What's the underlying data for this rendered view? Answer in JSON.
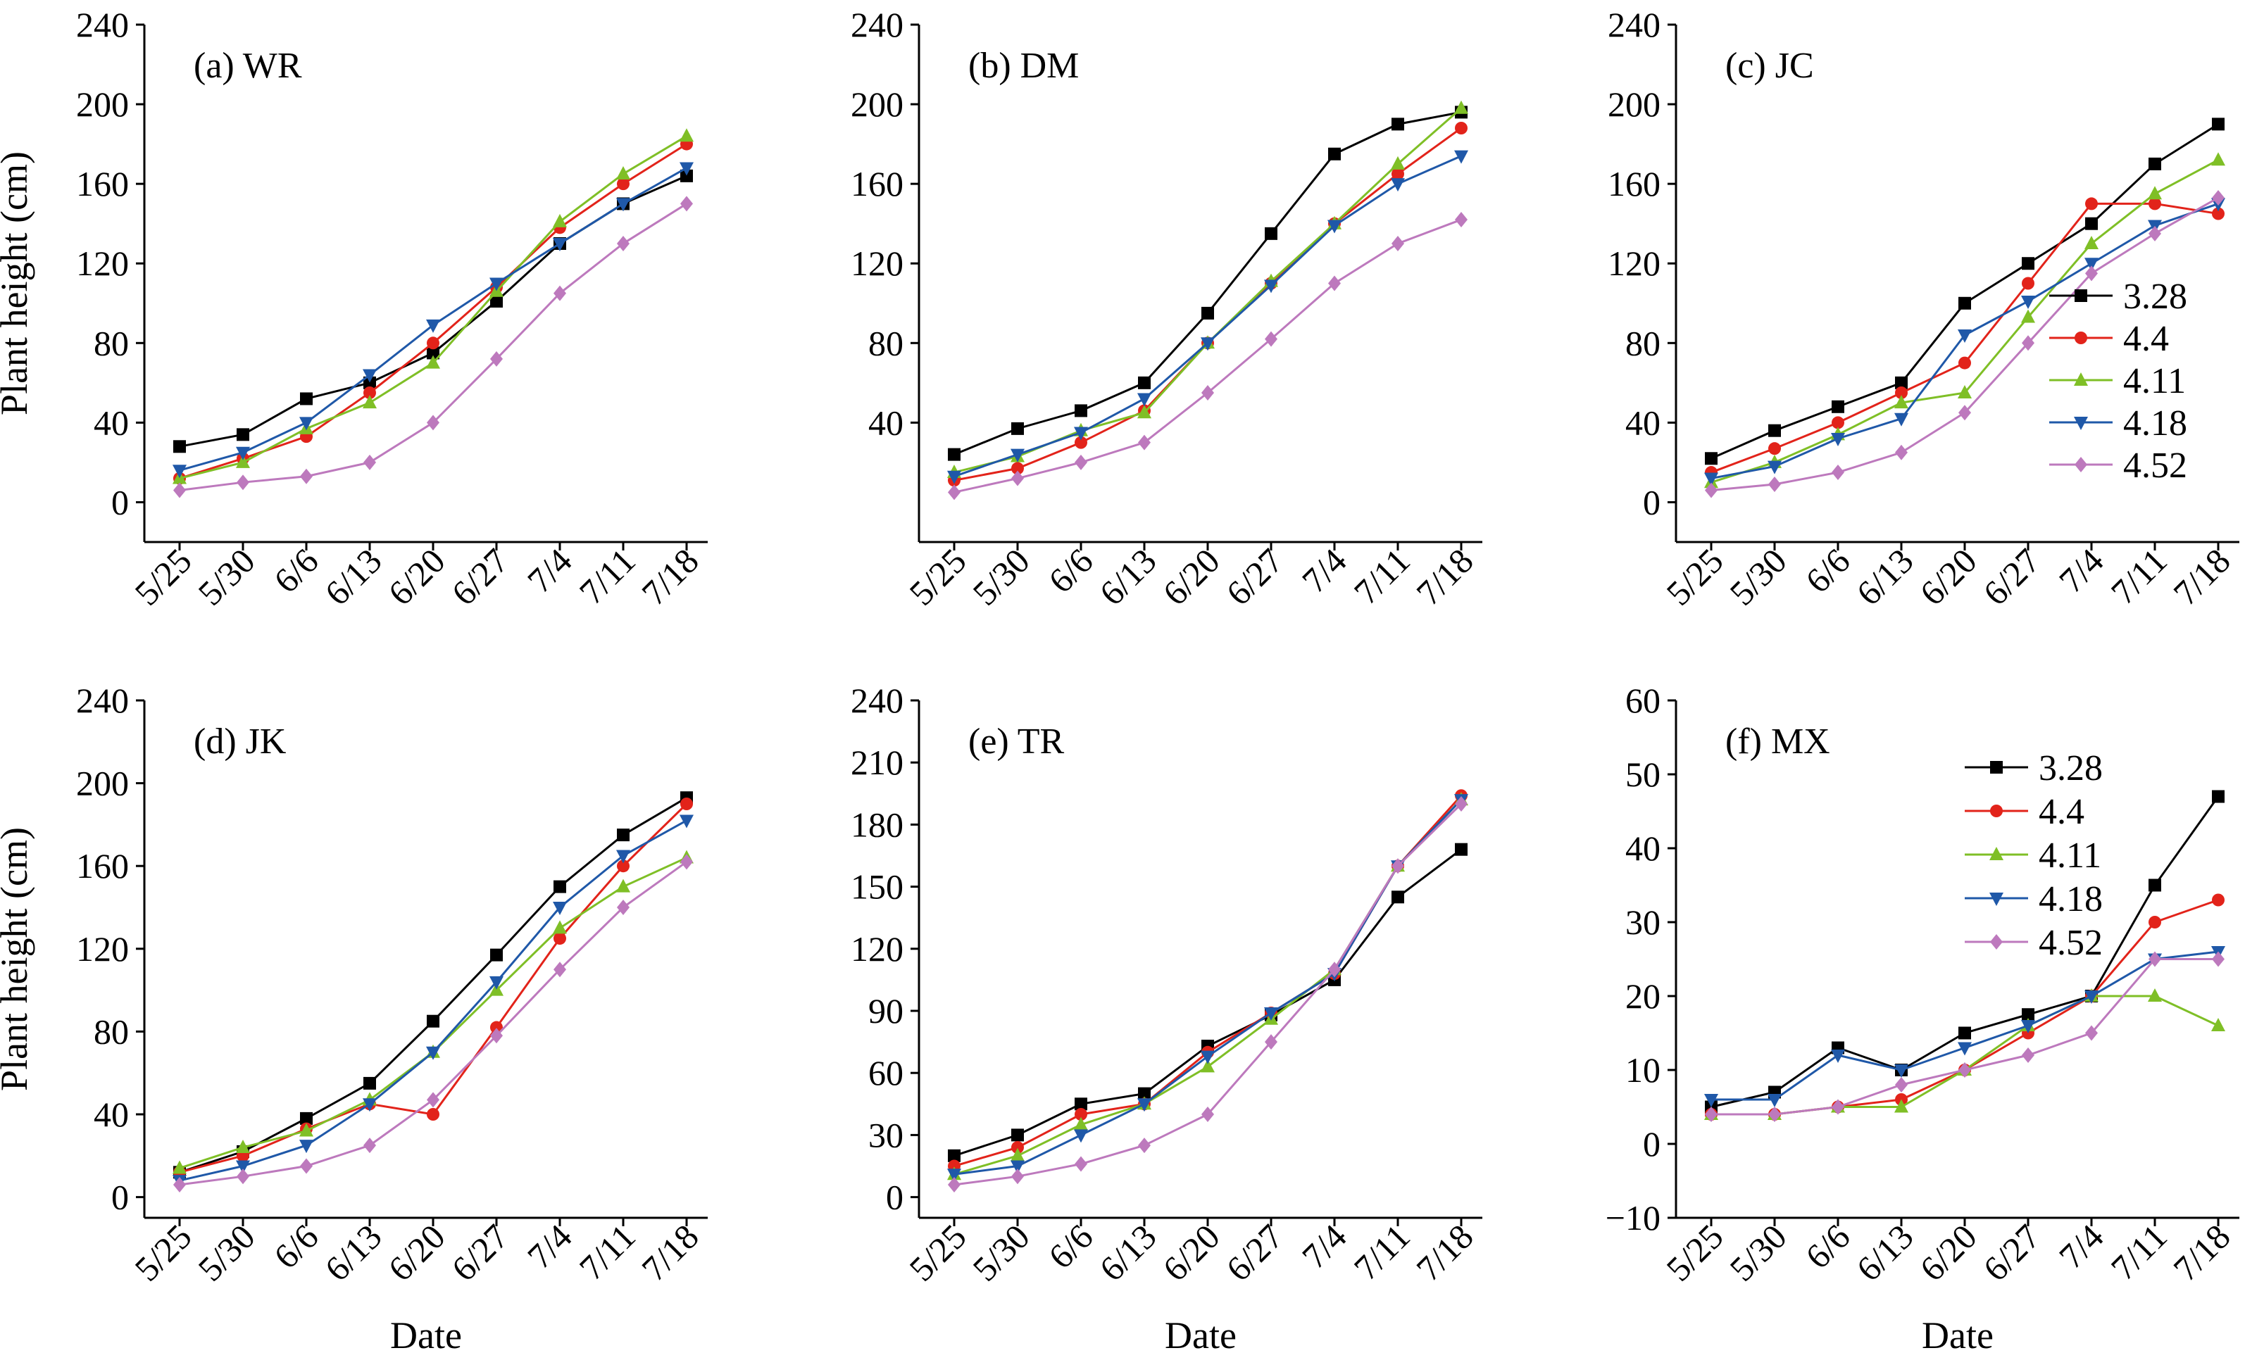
{
  "chart_data": [
    {
      "type": "line",
      "title": "(a) WR",
      "xlabel": "",
      "ylabel": "Plant height (cm)",
      "categories": [
        "5/25",
        "5/30",
        "6/6",
        "6/13",
        "6/20",
        "6/27",
        "7/4",
        "7/11",
        "7/18"
      ],
      "ylim": [
        -20,
        240
      ],
      "yticks": [
        0,
        40,
        80,
        120,
        160,
        200,
        240
      ],
      "legend": false,
      "series": [
        {
          "name": "3.28",
          "values": [
            28,
            34,
            52,
            60,
            75,
            101,
            130,
            150,
            164
          ]
        },
        {
          "name": "4.4",
          "values": [
            12,
            22,
            33,
            55,
            80,
            108,
            138,
            160,
            180
          ]
        },
        {
          "name": "4.11",
          "values": [
            12,
            20,
            37,
            50,
            70,
            106,
            141,
            165,
            184
          ]
        },
        {
          "name": "4.18",
          "values": [
            16,
            25,
            40,
            64,
            89,
            110,
            130,
            150,
            168
          ]
        },
        {
          "name": "4.52",
          "values": [
            6,
            10,
            13,
            20,
            40,
            72,
            105,
            130,
            150
          ]
        }
      ]
    },
    {
      "type": "line",
      "title": "(b) DM",
      "xlabel": "",
      "ylabel": "",
      "categories": [
        "5/25",
        "5/30",
        "6/6",
        "6/13",
        "6/20",
        "6/27",
        "7/4",
        "7/11",
        "7/18"
      ],
      "ylim": [
        -20,
        240
      ],
      "yticks": [
        40,
        80,
        120,
        160,
        200,
        240
      ],
      "legend": false,
      "series": [
        {
          "name": "3.28",
          "values": [
            24,
            37,
            46,
            60,
            95,
            135,
            175,
            190,
            196
          ]
        },
        {
          "name": "4.4",
          "values": [
            11,
            17,
            30,
            46,
            80,
            110,
            140,
            165,
            188
          ]
        },
        {
          "name": "4.11",
          "values": [
            15,
            23,
            36,
            45,
            80,
            111,
            140,
            170,
            198
          ]
        },
        {
          "name": "4.18",
          "values": [
            13,
            24,
            35,
            52,
            80,
            109,
            139,
            160,
            174
          ]
        },
        {
          "name": "4.52",
          "values": [
            5,
            12,
            20,
            30,
            55,
            82,
            110,
            130,
            142
          ]
        }
      ]
    },
    {
      "type": "line",
      "title": "(c) JC",
      "xlabel": "",
      "ylabel": "",
      "categories": [
        "5/25",
        "5/30",
        "6/6",
        "6/13",
        "6/20",
        "6/27",
        "7/4",
        "7/11",
        "7/18"
      ],
      "ylim": [
        -20,
        240
      ],
      "yticks": [
        0,
        40,
        80,
        120,
        160,
        200,
        240
      ],
      "legend": "right",
      "series": [
        {
          "name": "3.28",
          "values": [
            22,
            36,
            48,
            60,
            100,
            120,
            140,
            170,
            190
          ]
        },
        {
          "name": "4.4",
          "values": [
            15,
            27,
            40,
            55,
            70,
            110,
            150,
            150,
            145
          ]
        },
        {
          "name": "4.11",
          "values": [
            10,
            20,
            34,
            50,
            55,
            93,
            130,
            155,
            172
          ]
        },
        {
          "name": "4.18",
          "values": [
            12,
            18,
            32,
            42,
            84,
            101,
            120,
            139,
            150
          ]
        },
        {
          "name": "4.52",
          "values": [
            6,
            9,
            15,
            25,
            45,
            80,
            115,
            135,
            153
          ]
        }
      ]
    },
    {
      "type": "line",
      "title": "(d) JK",
      "xlabel": "Date",
      "ylabel": "Plant height (cm)",
      "categories": [
        "5/25",
        "5/30",
        "6/6",
        "6/13",
        "6/20",
        "6/27",
        "7/4",
        "7/11",
        "7/18"
      ],
      "ylim": [
        -10,
        240
      ],
      "yticks": [
        0,
        40,
        80,
        120,
        160,
        200,
        240
      ],
      "legend": false,
      "series": [
        {
          "name": "3.28",
          "values": [
            12,
            22,
            38,
            55,
            85,
            117,
            150,
            175,
            193
          ]
        },
        {
          "name": "4.4",
          "values": [
            12,
            20,
            33,
            45,
            40,
            82,
            125,
            160,
            190
          ]
        },
        {
          "name": "4.11",
          "values": [
            14,
            24,
            32,
            47,
            70,
            100,
            130,
            150,
            164
          ]
        },
        {
          "name": "4.18",
          "values": [
            8,
            15,
            25,
            45,
            70,
            104,
            140,
            165,
            182
          ]
        },
        {
          "name": "4.52",
          "values": [
            6,
            10,
            15,
            25,
            47,
            78,
            110,
            140,
            162
          ]
        }
      ]
    },
    {
      "type": "line",
      "title": "(e) TR",
      "xlabel": "Date",
      "ylabel": "",
      "categories": [
        "5/25",
        "5/30",
        "6/6",
        "6/13",
        "6/20",
        "6/27",
        "7/4",
        "7/11",
        "7/18"
      ],
      "ylim": [
        -10,
        240
      ],
      "yticks": [
        0,
        30,
        60,
        90,
        120,
        150,
        180,
        210,
        240
      ],
      "legend": false,
      "series": [
        {
          "name": "3.28",
          "values": [
            20,
            30,
            45,
            50,
            73,
            88,
            105,
            145,
            168
          ]
        },
        {
          "name": "4.4",
          "values": [
            15,
            24,
            40,
            45,
            70,
            89,
            108,
            160,
            194
          ]
        },
        {
          "name": "4.11",
          "values": [
            11,
            20,
            35,
            45,
            63,
            86,
            110,
            160,
            192
          ]
        },
        {
          "name": "4.18",
          "values": [
            11,
            15,
            30,
            45,
            68,
            89,
            108,
            160,
            192
          ]
        },
        {
          "name": "4.52",
          "values": [
            6,
            10,
            16,
            25,
            40,
            75,
            110,
            160,
            190
          ]
        }
      ]
    },
    {
      "type": "line",
      "title": "(f) MX",
      "xlabel": "Date",
      "ylabel": "",
      "categories": [
        "5/25",
        "5/30",
        "6/6",
        "6/13",
        "6/20",
        "6/27",
        "7/4",
        "7/11",
        "7/18"
      ],
      "ylim": [
        -10,
        60
      ],
      "yticks": [
        -10,
        0,
        10,
        20,
        30,
        40,
        50,
        60
      ],
      "legend": "top-right",
      "series": [
        {
          "name": "3.28",
          "values": [
            5,
            7,
            13,
            10,
            15,
            17.5,
            20,
            35,
            47
          ]
        },
        {
          "name": "4.4",
          "values": [
            4,
            4,
            5,
            6,
            10,
            15,
            20,
            30,
            33
          ]
        },
        {
          "name": "4.11",
          "values": [
            4,
            4,
            5,
            5,
            10,
            16,
            20,
            20,
            16
          ]
        },
        {
          "name": "4.18",
          "values": [
            6,
            6,
            12,
            10,
            13,
            16,
            20,
            25,
            26
          ]
        },
        {
          "name": "4.52",
          "values": [
            4,
            4,
            5,
            8,
            10,
            12,
            15,
            25,
            25
          ]
        }
      ]
    }
  ],
  "style": {
    "series_colors": [
      "#000000",
      "#e2231a",
      "#7fbf26",
      "#1f58a8",
      "#bd79bd"
    ],
    "series_markers": [
      "square",
      "circle",
      "triangle-up",
      "triangle-down",
      "diamond"
    ]
  }
}
